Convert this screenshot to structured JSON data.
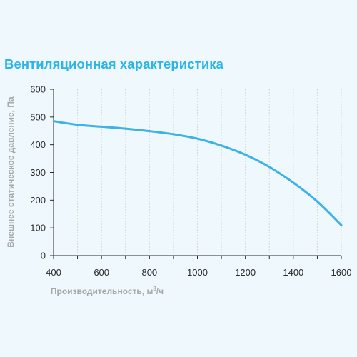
{
  "chart_data": {
    "type": "line",
    "title": "Вентиляционная характеристика",
    "xlabel": "Производительность, м",
    "xlabel_sup": "3",
    "xlabel_suffix": "/ч",
    "ylabel": "Внешнее статическое давление, Па",
    "xlim": [
      400,
      1600
    ],
    "ylim": [
      0,
      600
    ],
    "x_ticks": [
      400,
      600,
      800,
      1000,
      1200,
      1400,
      1600
    ],
    "y_ticks": [
      0,
      100,
      200,
      300,
      400,
      500,
      600
    ],
    "grid": true,
    "series": [
      {
        "color": "#3cb2e6",
        "x": [
          400,
          500,
          600,
          700,
          800,
          900,
          1000,
          1100,
          1200,
          1300,
          1400,
          1500,
          1600
        ],
        "y": [
          485,
          472,
          465,
          458,
          449,
          438,
          422,
          397,
          364,
          320,
          263,
          195,
          110
        ]
      }
    ]
  }
}
